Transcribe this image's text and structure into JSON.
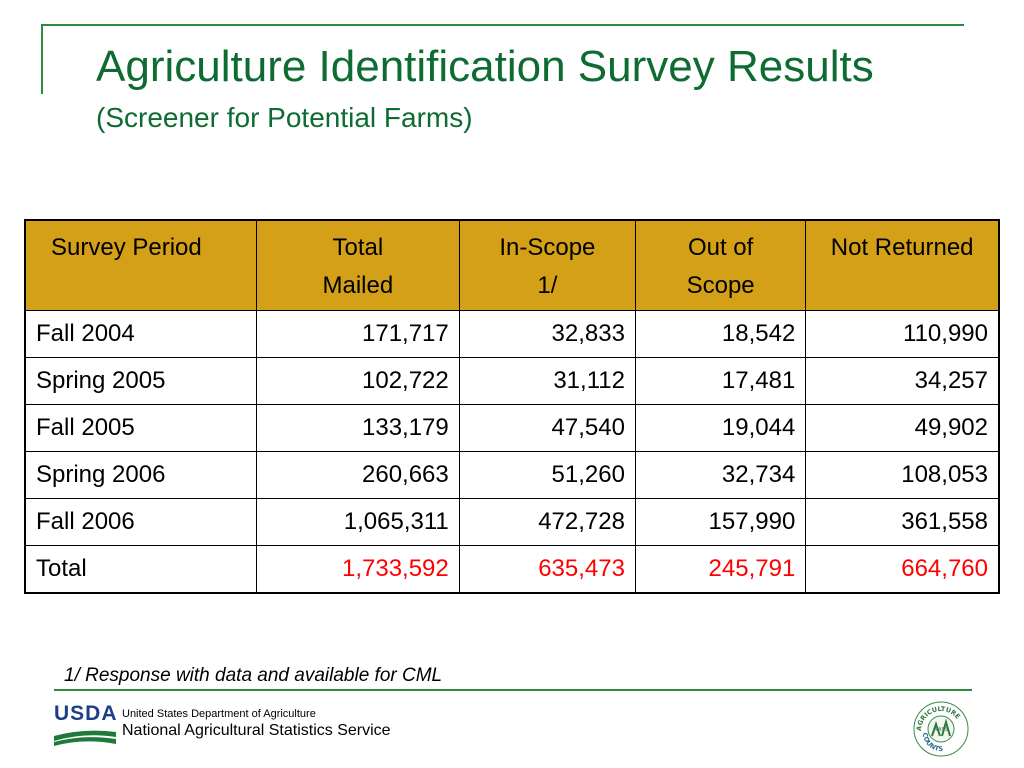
{
  "slide": {
    "title": "Agriculture Identification Survey Results",
    "subtitle": "(Screener for Potential Farms)"
  },
  "table": {
    "headers": [
      [
        "Survey Period"
      ],
      [
        "Total",
        "Mailed"
      ],
      [
        "In-Scope",
        "1/"
      ],
      [
        "Out of",
        "Scope"
      ],
      [
        "Not Returned"
      ]
    ],
    "rows": [
      [
        "Fall 2004",
        "171,717",
        "32,833",
        "18,542",
        "110,990"
      ],
      [
        "Spring 2005",
        "102,722",
        "31,112",
        "17,481",
        "34,257"
      ],
      [
        "Fall 2005",
        "133,179",
        "47,540",
        "19,044",
        "49,902"
      ],
      [
        "Spring 2006",
        "260,663",
        "51,260",
        "32,734",
        "108,053"
      ],
      [
        "Fall 2006",
        "1,065,311",
        "472,728",
        "157,990",
        "361,558"
      ],
      [
        "Total",
        "1,733,592",
        "635,473",
        "245,791",
        "664,760"
      ]
    ]
  },
  "footnote": "1/ Response with data and available for CML",
  "footer": {
    "logo_text": "USDA",
    "department": "United States Department of Agriculture",
    "agency": "National Agricultural Statistics Service",
    "seal_top": "AGRICULTURE",
    "seal_bottom": "COUNTS",
    "seal_center": "NASS"
  },
  "colors": {
    "title_green": "#0e6b32",
    "rule_green": "#2e8b3e",
    "header_gold": "#d4a017",
    "total_red": "#ff0000",
    "usda_blue": "#1d3f8a"
  }
}
